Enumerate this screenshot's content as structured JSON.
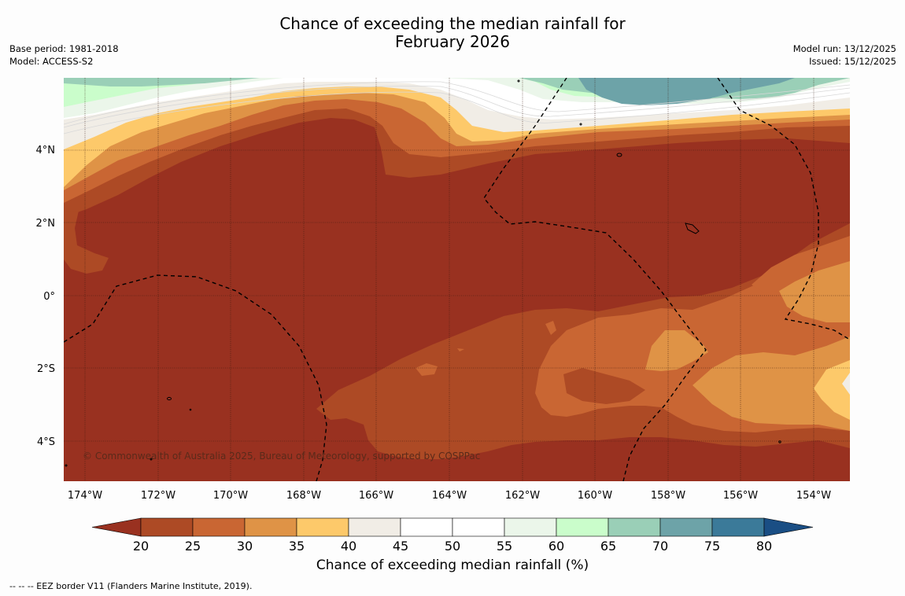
{
  "title": {
    "line1": "Chance of exceeding the median rainfall for",
    "line2": "February 2026"
  },
  "meta_left": {
    "base_period": "Base period: 1981-2018",
    "model": "Model: ACCESS-S2"
  },
  "meta_right": {
    "model_run": "Model run: 13/12/2025",
    "issued": "Issued: 15/12/2025"
  },
  "map": {
    "lat_labels": [
      "4°N",
      "2°N",
      "0°",
      "2°S",
      "4°S"
    ],
    "lon_labels": [
      "174°W",
      "172°W",
      "170°W",
      "168°W",
      "166°W",
      "164°W",
      "162°W",
      "160°W",
      "158°W",
      "156°W",
      "154°W"
    ],
    "copyright": "© Commonwealth of Australia 2025, Bureau of Meteorology, supported by COSPPac"
  },
  "colorbar": {
    "title": "Chance of exceeding median rainfall (%)",
    "ticks": [
      "20",
      "25",
      "30",
      "35",
      "40",
      "45",
      "50",
      "55",
      "60",
      "65",
      "70",
      "75",
      "80"
    ],
    "colors": [
      "#993120",
      "#ad4a25",
      "#c96633",
      "#df9346",
      "#fdc96a",
      "#f1ede6",
      "#ffffff",
      "#ffffff",
      "#ebf6ea",
      "#cafdcb",
      "#9acfb7",
      "#6da3a8",
      "#3b7a99",
      "#1a4e84"
    ]
  },
  "footnote": "-- -- -- EEZ border V11 (Flanders Marine Institute, 2019)."
}
